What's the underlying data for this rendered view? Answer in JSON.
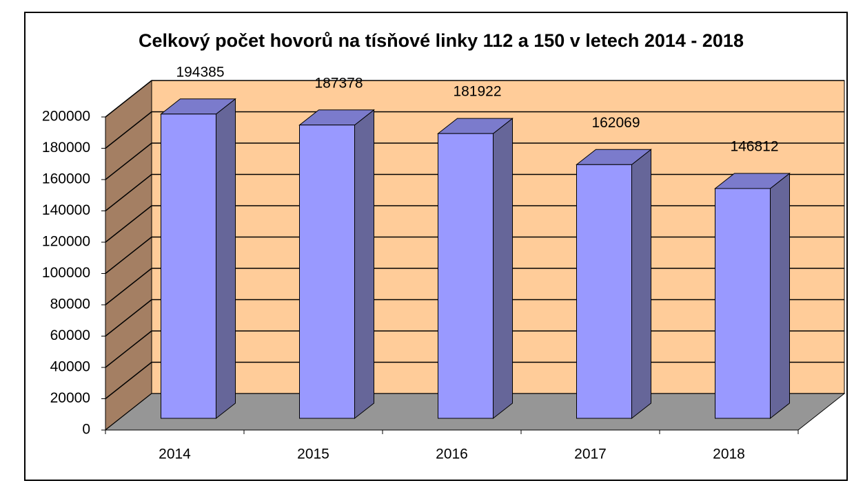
{
  "chart_data": {
    "type": "bar3d",
    "title": "Celkový počet hovorů na tísňové linky 112 a 150 v letech 2014 - 2018",
    "categories": [
      "2014",
      "2015",
      "2016",
      "2017",
      "2018"
    ],
    "values": [
      194385,
      187378,
      181922,
      162069,
      146812
    ],
    "color": "#9999ff",
    "ylim": [
      0,
      200000
    ],
    "yticks": [
      0,
      20000,
      40000,
      60000,
      80000,
      100000,
      120000,
      140000,
      160000,
      180000,
      200000
    ],
    "grid": true
  }
}
